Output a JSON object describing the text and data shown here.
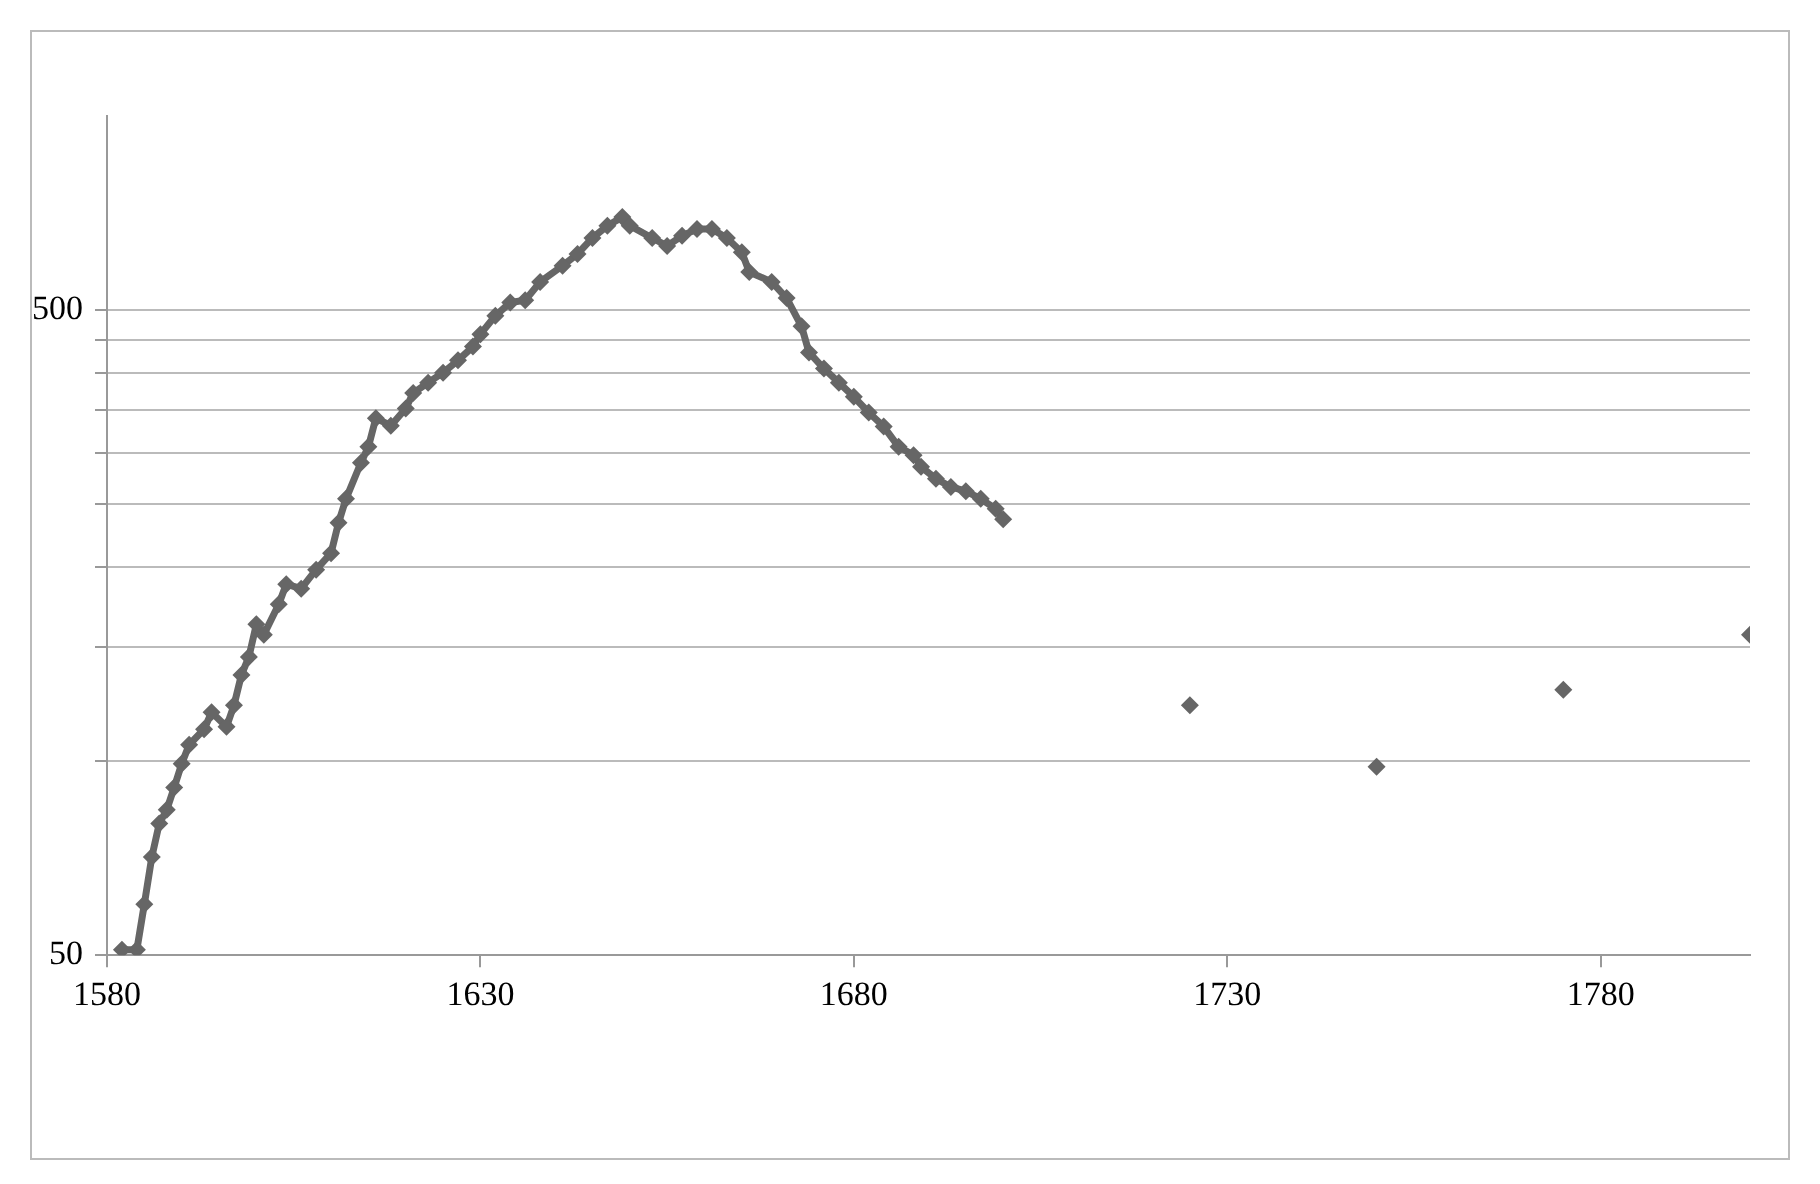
{
  "chart_data": {
    "type": "line",
    "log": "y",
    "grid": "y",
    "marker": "diamond",
    "line_style": "solid",
    "legend": false,
    "xlim": [
      1580,
      1800
    ],
    "xticks": [
      1580,
      1630,
      1680,
      1730,
      1780
    ],
    "ylim": [
      50,
      1000
    ],
    "yticks": [
      50,
      {
        "value": 100,
        "label": null
      },
      {
        "value": 150,
        "label": null
      },
      {
        "value": 200,
        "label": null
      },
      {
        "value": 250,
        "label": null
      },
      {
        "value": 300,
        "label": null
      },
      {
        "value": 350,
        "label": null
      },
      {
        "value": 400,
        "label": null
      },
      {
        "value": 450,
        "label": null
      },
      500
    ],
    "series": [
      {
        "color": "#666666",
        "x": [
          1582,
          1584,
          1585,
          1586,
          1587,
          1588,
          1589,
          1590,
          1591,
          1593,
          1594,
          1596,
          1597,
          1598,
          1599,
          1600,
          1601,
          1603,
          1604,
          1606,
          1608,
          1610,
          1611,
          1612,
          1614,
          1615,
          1616,
          1618,
          1620,
          1621,
          1623,
          1625,
          1627,
          1629,
          1630,
          1632,
          1634,
          1636,
          1638,
          1641,
          1643,
          1645,
          1647,
          1649,
          1650,
          1653,
          1655,
          1657,
          1659,
          1661,
          1663,
          1665,
          1666,
          1669,
          1671,
          1673,
          1674,
          1676,
          1678,
          1680,
          1682,
          1684,
          1686,
          1688,
          1689,
          1691,
          1693,
          1695,
          1697,
          1699,
          1700
        ],
        "values": [
          51,
          51,
          60,
          71,
          80,
          84,
          91,
          99,
          106,
          112,
          119,
          113,
          122,
          136,
          145,
          163,
          157,
          175,
          188,
          185,
          198,
          210,
          234,
          255,
          290,
          307,
          340,
          331,
          352,
          372,
          386,
          400,
          418,
          439,
          459,
          490,
          514,
          518,
          553,
          586,
          611,
          647,
          676,
          697,
          676,
          647,
          629,
          652,
          668,
          668,
          647,
          615,
          573,
          553,
          522,
          472,
          430,
          406,
          386,
          367,
          347,
          330,
          307,
          298,
          286,
          274,
          266,
          262,
          255,
          246,
          237
        ]
      },
      {
        "type": "scatter",
        "color": "#666666",
        "x": [
          1725,
          1750,
          1775,
          1800
        ],
        "values": [
          122,
          98,
          129,
          157
        ]
      }
    ]
  }
}
